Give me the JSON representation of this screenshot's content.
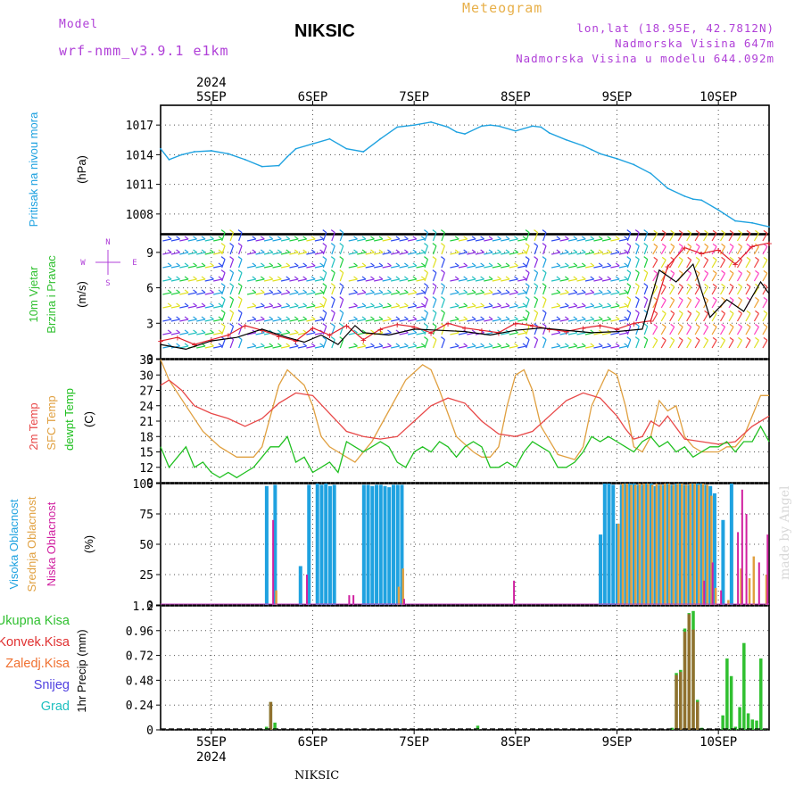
{
  "header": {
    "title": "NIKSIC",
    "meteogram_label": "Meteogram",
    "model_label": "Model",
    "model_name": "wrf-nmm_v3.9.1 e1km",
    "location": "lon,lat (18.95E, 42.7812N)",
    "elevation": "Nadmorska Visina 647m",
    "model_elevation": "Nadmorska Visina u modelu 644.092m"
  },
  "footer": {
    "station": "NIKSIC",
    "credit": "made by Angel"
  },
  "colors": {
    "pressure": "#1fa2e0",
    "wind_speed": "#000000",
    "wind_gust": "#e0202b",
    "temp2m": "#e84848",
    "sfc_temp": "#e0a040",
    "dewpt": "#20c020",
    "cloud_high": "#1fa2e0",
    "cloud_mid": "#e0a040",
    "cloud_low": "#d020a0",
    "precip_total": "#30c030",
    "precip_conv": "#e03030",
    "precip_frozen": "#f07030",
    "snow": "#5040e0",
    "graupel": "#20c0c0"
  },
  "chart_data": [
    {
      "type": "line",
      "panel": "pressure",
      "ylabel": "Pritisak na nivou mora",
      "unit": "(hPa)",
      "ylim": [
        1006,
        1019
      ],
      "yticks": [
        1008,
        1011,
        1014,
        1017
      ],
      "xlim": [
        0,
        144
      ],
      "x_tick_labels": [
        "5SEP",
        "6SEP",
        "7SEP",
        "8SEP",
        "9SEP",
        "10SEP"
      ],
      "x_ticks": [
        12,
        36,
        60,
        84,
        108,
        132
      ],
      "year": "2024",
      "grid": true,
      "series": [
        {
          "x": [
            0,
            2,
            5,
            8,
            12,
            16,
            20,
            24,
            28,
            30,
            32,
            36,
            40,
            44,
            48,
            52,
            56,
            60,
            64,
            68,
            70,
            72,
            76,
            78,
            80,
            84,
            88,
            90,
            92,
            96,
            100,
            102,
            104,
            108,
            112,
            116,
            120,
            124,
            126,
            128,
            132,
            136,
            140,
            144
          ],
          "values": [
            1014.6,
            1013.5,
            1014.0,
            1014.3,
            1014.4,
            1014.1,
            1013.5,
            1012.8,
            1012.9,
            1013.8,
            1014.6,
            1015.1,
            1015.6,
            1014.6,
            1014.3,
            1015.6,
            1016.8,
            1017.0,
            1017.3,
            1016.8,
            1016.3,
            1016.1,
            1016.9,
            1017.0,
            1016.9,
            1016.4,
            1016.9,
            1016.8,
            1016.2,
            1015.5,
            1014.9,
            1014.5,
            1014.1,
            1013.6,
            1013.0,
            1012.1,
            1010.6,
            1009.8,
            1009.5,
            1009.4,
            1008.4,
            1007.3,
            1007.1,
            1006.7
          ]
        }
      ]
    },
    {
      "type": "line",
      "panel": "wind",
      "ylabel": "10m Vjetar Brzina i Pravac",
      "unit": "(m/s)",
      "compass": [
        "N",
        "W",
        "E",
        "S"
      ],
      "ylim": [
        0,
        10.5
      ],
      "yticks": [
        0,
        3,
        6,
        9
      ],
      "grid": true,
      "series": [
        {
          "name": "speed",
          "x": [
            0,
            6,
            12,
            18,
            24,
            30,
            34,
            38,
            42,
            46,
            48,
            54,
            60,
            66,
            72,
            78,
            84,
            90,
            96,
            102,
            108,
            114,
            118,
            122,
            126,
            130,
            134,
            138,
            142,
            144
          ],
          "values": [
            1.2,
            0.8,
            1.5,
            1.8,
            2.5,
            1.8,
            1.4,
            2.0,
            1.2,
            2.8,
            2.2,
            2.0,
            2.5,
            2.4,
            2.3,
            2.0,
            2.4,
            2.6,
            2.4,
            2.2,
            2.3,
            2.5,
            7.5,
            6.5,
            8.0,
            3.5,
            5.0,
            4.0,
            6.5,
            5.5
          ]
        },
        {
          "name": "gust",
          "x": [
            0,
            4,
            8,
            12,
            16,
            20,
            24,
            28,
            32,
            36,
            40,
            44,
            48,
            52,
            56,
            60,
            64,
            68,
            72,
            76,
            80,
            84,
            88,
            92,
            96,
            100,
            104,
            108,
            112,
            116,
            120,
            124,
            128,
            132,
            136,
            140,
            144
          ],
          "values": [
            1.5,
            1.8,
            1.2,
            1.6,
            2.0,
            2.8,
            2.4,
            1.9,
            1.5,
            2.6,
            2.0,
            2.8,
            1.6,
            2.5,
            2.9,
            2.7,
            2.2,
            3.0,
            2.6,
            2.4,
            2.2,
            3.0,
            2.8,
            2.5,
            2.3,
            2.6,
            2.8,
            2.5,
            3.0,
            3.2,
            7.8,
            9.4,
            8.9,
            9.2,
            8.0,
            9.5,
            9.8
          ]
        }
      ]
    },
    {
      "type": "line",
      "panel": "temperature",
      "ylabel": "2m Temp / SFC Temp / dewpt Temp",
      "unit": "(C)",
      "ylim": [
        9,
        33
      ],
      "yticks": [
        9,
        12,
        15,
        18,
        21,
        24,
        27,
        30,
        33
      ],
      "grid": true,
      "series": [
        {
          "name": "2m Temp",
          "x": [
            0,
            2,
            5,
            8,
            12,
            16,
            20,
            24,
            28,
            32,
            36,
            40,
            44,
            48,
            52,
            56,
            60,
            64,
            68,
            72,
            76,
            80,
            84,
            88,
            92,
            96,
            100,
            104,
            108,
            110,
            112,
            114,
            116,
            118,
            120,
            124,
            128,
            132,
            136,
            140,
            144
          ],
          "values": [
            28,
            29,
            27,
            24,
            22.5,
            21.5,
            20,
            21.5,
            24.5,
            26.5,
            26,
            22.5,
            19,
            18,
            17.5,
            18,
            21,
            24,
            25.5,
            24.5,
            21,
            18.5,
            18,
            19,
            22,
            25,
            26.5,
            25.5,
            22,
            19.5,
            17.5,
            18,
            21,
            20,
            22,
            17.5,
            17,
            16.5,
            17,
            20,
            22
          ]
        },
        {
          "name": "SFC Temp",
          "x": [
            0,
            2,
            6,
            10,
            14,
            18,
            22,
            24,
            26,
            28,
            30,
            34,
            36,
            38,
            40,
            42,
            44,
            46,
            50,
            54,
            58,
            62,
            64,
            66,
            70,
            74,
            76,
            78,
            80,
            82,
            84,
            86,
            88,
            90,
            94,
            98,
            100,
            102,
            106,
            108,
            110,
            112,
            114,
            116,
            118,
            120,
            122,
            124,
            126,
            128,
            130,
            132,
            134,
            136,
            138,
            140,
            142,
            144
          ],
          "values": [
            33,
            29,
            24,
            19,
            16,
            14,
            14,
            16,
            22,
            28,
            31,
            28,
            24,
            18,
            16,
            15,
            14,
            13,
            17,
            23,
            29,
            32,
            31,
            27,
            18,
            15,
            14,
            14,
            16,
            24,
            30,
            31,
            27,
            20,
            14.5,
            13.5,
            16,
            24,
            31,
            30,
            24,
            16,
            15,
            18,
            25,
            23,
            24,
            18,
            16,
            15,
            15,
            15,
            16,
            16,
            18,
            22,
            26,
            26
          ]
        },
        {
          "name": "dewpt Temp",
          "x": [
            0,
            2,
            4,
            6,
            8,
            10,
            12,
            14,
            16,
            18,
            20,
            22,
            24,
            26,
            28,
            30,
            32,
            34,
            36,
            38,
            40,
            42,
            44,
            46,
            48,
            50,
            52,
            54,
            56,
            58,
            60,
            62,
            64,
            66,
            68,
            70,
            72,
            74,
            76,
            78,
            80,
            82,
            84,
            86,
            88,
            90,
            92,
            94,
            96,
            98,
            100,
            102,
            104,
            106,
            108,
            110,
            112,
            114,
            116,
            118,
            120,
            122,
            124,
            126,
            128,
            130,
            132,
            134,
            136,
            138,
            140,
            142,
            144
          ],
          "values": [
            16,
            12,
            14,
            16,
            12,
            13,
            11,
            10,
            11,
            10,
            11,
            12,
            14,
            16,
            16,
            18,
            13,
            14,
            11,
            12,
            13,
            11,
            17,
            16,
            15,
            16,
            17,
            16,
            13,
            12,
            15,
            16,
            15,
            17,
            16,
            14,
            16,
            17,
            16,
            12,
            12,
            13,
            12,
            15,
            17,
            16,
            15,
            12,
            12,
            13,
            15,
            18,
            17,
            18,
            17,
            16,
            15,
            17,
            18,
            16,
            17,
            15,
            16,
            14,
            15,
            16,
            16,
            17,
            15,
            17,
            17,
            20,
            17
          ]
        }
      ]
    },
    {
      "type": "bar",
      "panel": "clouds",
      "ylabel": "Visoka Oblacnost / Srednja Oblacnost / Niska Oblacnost",
      "unit": "(%)",
      "ylim": [
        0,
        100
      ],
      "yticks": [
        0,
        25,
        50,
        75,
        100
      ],
      "grid": true,
      "series": [
        {
          "name": "Visoka Oblacnost",
          "x": [
            25,
            27,
            33,
            35,
            37,
            38,
            39,
            40,
            41,
            48,
            49,
            50,
            51,
            52,
            53,
            54,
            55,
            56,
            57,
            104,
            105,
            106,
            107,
            108,
            109,
            110,
            111,
            112,
            113,
            114,
            115,
            116,
            117,
            118,
            119,
            120,
            121,
            122,
            123,
            124,
            125,
            126,
            127,
            128,
            129,
            130,
            131,
            133,
            135
          ],
          "values": [
            98,
            99,
            32,
            99,
            100,
            99,
            100,
            98,
            99,
            99,
            99,
            98,
            99,
            99,
            98,
            97,
            99,
            99,
            99,
            58,
            100,
            100,
            99,
            67,
            99,
            100,
            100,
            100,
            99,
            99,
            100,
            100,
            98,
            99,
            99,
            100,
            99,
            100,
            100,
            99,
            99,
            100,
            100,
            100,
            99,
            98,
            92,
            70,
            100
          ]
        },
        {
          "name": "Srednja Oblacnost",
          "x": [
            27,
            56,
            57,
            108,
            109,
            110,
            111,
            112,
            113,
            114,
            115,
            116,
            117,
            118,
            119,
            120,
            121,
            122,
            123,
            124,
            125,
            126,
            127,
            128,
            129,
            130,
            131,
            134,
            137,
            139,
            140,
            143
          ],
          "values": [
            12,
            15,
            30,
            67,
            100,
            100,
            99,
            99,
            100,
            100,
            100,
            99,
            100,
            99,
            100,
            100,
            99,
            100,
            100,
            99,
            100,
            100,
            99,
            100,
            99,
            90,
            14,
            4,
            30,
            22,
            40,
            25
          ]
        },
        {
          "name": "Niska Oblacnost",
          "x": [
            26,
            34,
            44,
            45,
            57,
            83,
            128,
            130,
            132,
            136,
            137,
            138,
            141,
            143
          ],
          "values": [
            70,
            25,
            8,
            8,
            5,
            20,
            20,
            35,
            12,
            60,
            95,
            75,
            35,
            58
          ]
        }
      ]
    },
    {
      "type": "bar",
      "panel": "precip",
      "ylabel": "1hr Precip",
      "unit": "(mm)",
      "ylim": [
        0,
        1.2
      ],
      "yticks": [
        0,
        0.24,
        0.48,
        0.72,
        0.96,
        1.2
      ],
      "grid": true,
      "legend": [
        "Ukupna Kisa",
        "Konvek.Kisa",
        "Zaledj.Kisa",
        "Snijeg",
        "Grad"
      ],
      "series": [
        {
          "name": "Ukupna Kisa",
          "x": [
            25,
            26,
            27,
            75,
            121,
            122,
            123,
            124,
            125,
            126,
            127,
            128,
            133,
            134,
            135,
            136,
            137,
            138,
            139,
            140,
            141,
            142,
            143
          ],
          "values": [
            0.03,
            0.27,
            0.07,
            0.04,
            0.02,
            0.55,
            0.58,
            0.98,
            1.13,
            1.15,
            0.29,
            0.02,
            0.14,
            0.69,
            0.52,
            0.03,
            0.22,
            0.84,
            0.16,
            0.1,
            0.09,
            0.69,
            0.01
          ]
        },
        {
          "name": "Konvek.Kisa",
          "x": [
            26,
            122,
            123,
            124,
            125,
            126,
            127
          ],
          "values": [
            0.27,
            0.53,
            0.56,
            0.95,
            1.12,
            0.97,
            0.27
          ]
        }
      ]
    }
  ]
}
